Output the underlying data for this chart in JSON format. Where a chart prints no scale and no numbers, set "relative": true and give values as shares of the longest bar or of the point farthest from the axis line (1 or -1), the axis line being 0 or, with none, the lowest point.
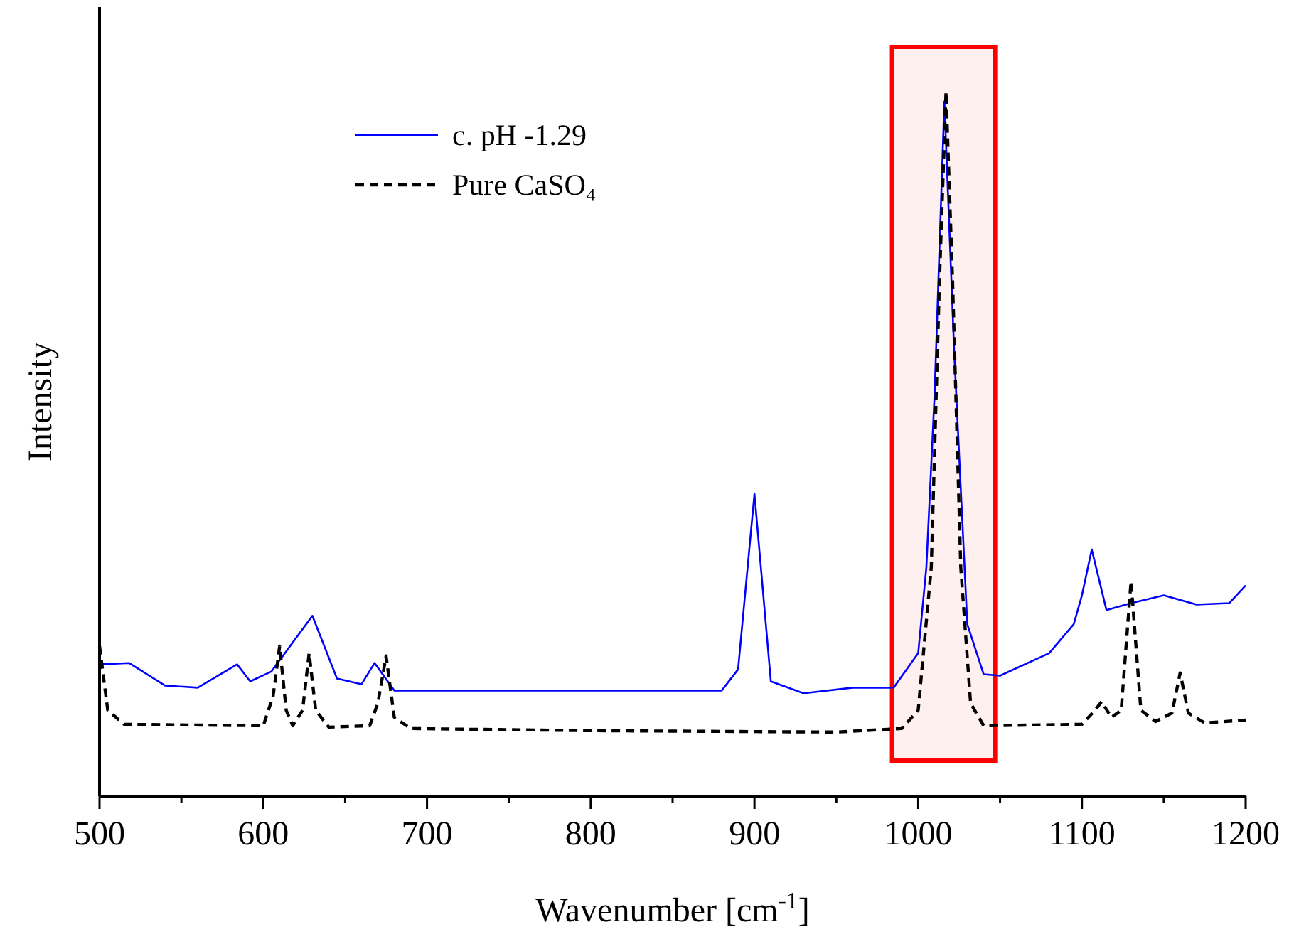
{
  "chart_data": {
    "type": "line",
    "xlabel": "Wavenumber [cm$^{-1}$]",
    "ylabel": "Intensity",
    "relative": true,
    "xlim": [
      500,
      1200
    ],
    "xticks": [
      500,
      {
        "value": 550,
        "label": null
      },
      600,
      {
        "value": 650,
        "label": null
      },
      700,
      {
        "value": 750,
        "label": null
      },
      800,
      {
        "value": 850,
        "label": null
      },
      900,
      {
        "value": 950,
        "label": null
      },
      1000,
      {
        "value": 1050,
        "label": null
      },
      1100,
      {
        "value": 1150,
        "label": null
      },
      1200
    ],
    "legend": "top left",
    "grid": false,
    "bands": [
      {
        "axis": "x",
        "from": 984,
        "to": 1047,
        "color": "#ff0000"
      }
    ],
    "series": [
      {
        "name": "c. pH -1.29",
        "color": "#0000ff",
        "line_style": "solid",
        "x": [
          500,
          518,
          540,
          560,
          584,
          592,
          605,
          630,
          645,
          660,
          668,
          680,
          700,
          800,
          880,
          890,
          900,
          910,
          930,
          960,
          985,
          1000,
          1005,
          1010,
          1016,
          1022,
          1030,
          1040,
          1050,
          1080,
          1095,
          1100,
          1106,
          1115,
          1130,
          1150,
          1170,
          1190,
          1200
        ],
        "values": [
          0.187,
          0.189,
          0.157,
          0.154,
          0.187,
          0.163,
          0.177,
          0.256,
          0.167,
          0.159,
          0.189,
          0.15,
          0.15,
          0.15,
          0.15,
          0.18,
          0.429,
          0.163,
          0.146,
          0.154,
          0.154,
          0.203,
          0.325,
          0.569,
          0.986,
          0.63,
          0.244,
          0.173,
          0.171,
          0.203,
          0.244,
          0.285,
          0.35,
          0.264,
          0.274,
          0.285,
          0.272,
          0.274,
          0.299
        ]
      },
      {
        "name": "Pure CaSO₄",
        "color": "#000000",
        "line_style": "dashed",
        "x": [
          500,
          505,
          515,
          600,
          606,
          610,
          614,
          618,
          624,
          628,
          632,
          640,
          665,
          670,
          675,
          680,
          690,
          800,
          950,
          990,
          1000,
          1008,
          1013,
          1017,
          1021,
          1026,
          1032,
          1040,
          1100,
          1108,
          1112,
          1118,
          1124,
          1130,
          1136,
          1145,
          1155,
          1160,
          1165,
          1175,
          1200
        ],
        "values": [
          0.213,
          0.122,
          0.102,
          0.1,
          0.142,
          0.213,
          0.122,
          0.1,
          0.122,
          0.203,
          0.122,
          0.098,
          0.1,
          0.132,
          0.199,
          0.112,
          0.096,
          0.093,
          0.091,
          0.096,
          0.122,
          0.325,
          0.732,
          1.0,
          0.732,
          0.325,
          0.132,
          0.1,
          0.102,
          0.122,
          0.134,
          0.112,
          0.122,
          0.305,
          0.122,
          0.106,
          0.118,
          0.175,
          0.118,
          0.104,
          0.108
        ]
      }
    ]
  }
}
